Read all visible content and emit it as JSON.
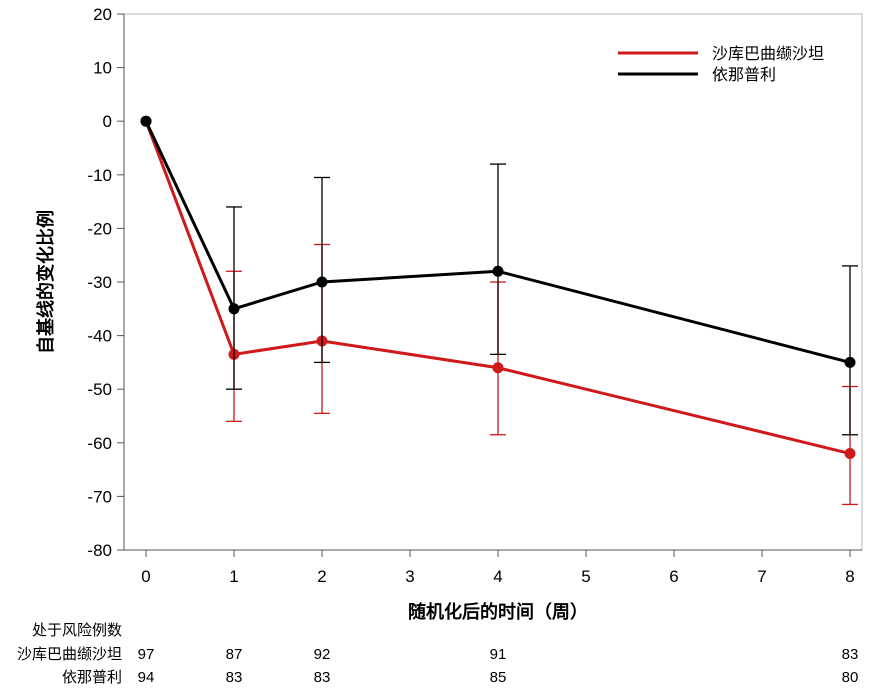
{
  "chart_data": {
    "type": "line",
    "xlabel": "随机化后的时间（周）",
    "ylabel": "自基线的变化比例",
    "xlim": [
      0,
      8
    ],
    "ylim": [
      -80,
      20
    ],
    "x_ticks": [
      0,
      1,
      2,
      3,
      4,
      5,
      6,
      7,
      8
    ],
    "y_ticks": [
      20,
      10,
      0,
      -10,
      -20,
      -30,
      -40,
      -50,
      -60,
      -70,
      -80
    ],
    "grid": false,
    "legend_position": "top-right",
    "series": [
      {
        "name": "沙库巴曲缬沙坦",
        "color": "#d0191b",
        "x": [
          0,
          1,
          2,
          4,
          8
        ],
        "y": [
          0,
          -43.5,
          -41,
          -46,
          -62
        ],
        "err_low": [
          0,
          -56,
          -54.5,
          -58.5,
          -71.5
        ],
        "err_high": [
          0,
          -28,
          -23,
          -30,
          -49.5
        ]
      },
      {
        "name": "依那普利",
        "color": "#000000",
        "x": [
          0,
          1,
          2,
          4,
          8
        ],
        "y": [
          0,
          -35,
          -30,
          -28,
          -45
        ],
        "err_low": [
          0,
          -50,
          -45,
          -43.5,
          -58.5
        ],
        "err_high": [
          0,
          -16,
          -10.5,
          -8,
          -27
        ]
      }
    ]
  },
  "risk_table": {
    "title": "处于风险例数",
    "rows": [
      {
        "label": "沙库巴曲缬沙坦",
        "x": [
          0,
          1,
          2,
          4,
          8
        ],
        "values": [
          "97",
          "87",
          "92",
          "91",
          "83"
        ]
      },
      {
        "label": "依那普利",
        "x": [
          0,
          1,
          2,
          4,
          8
        ],
        "values": [
          "94",
          "83",
          "83",
          "85",
          "80"
        ]
      }
    ]
  }
}
